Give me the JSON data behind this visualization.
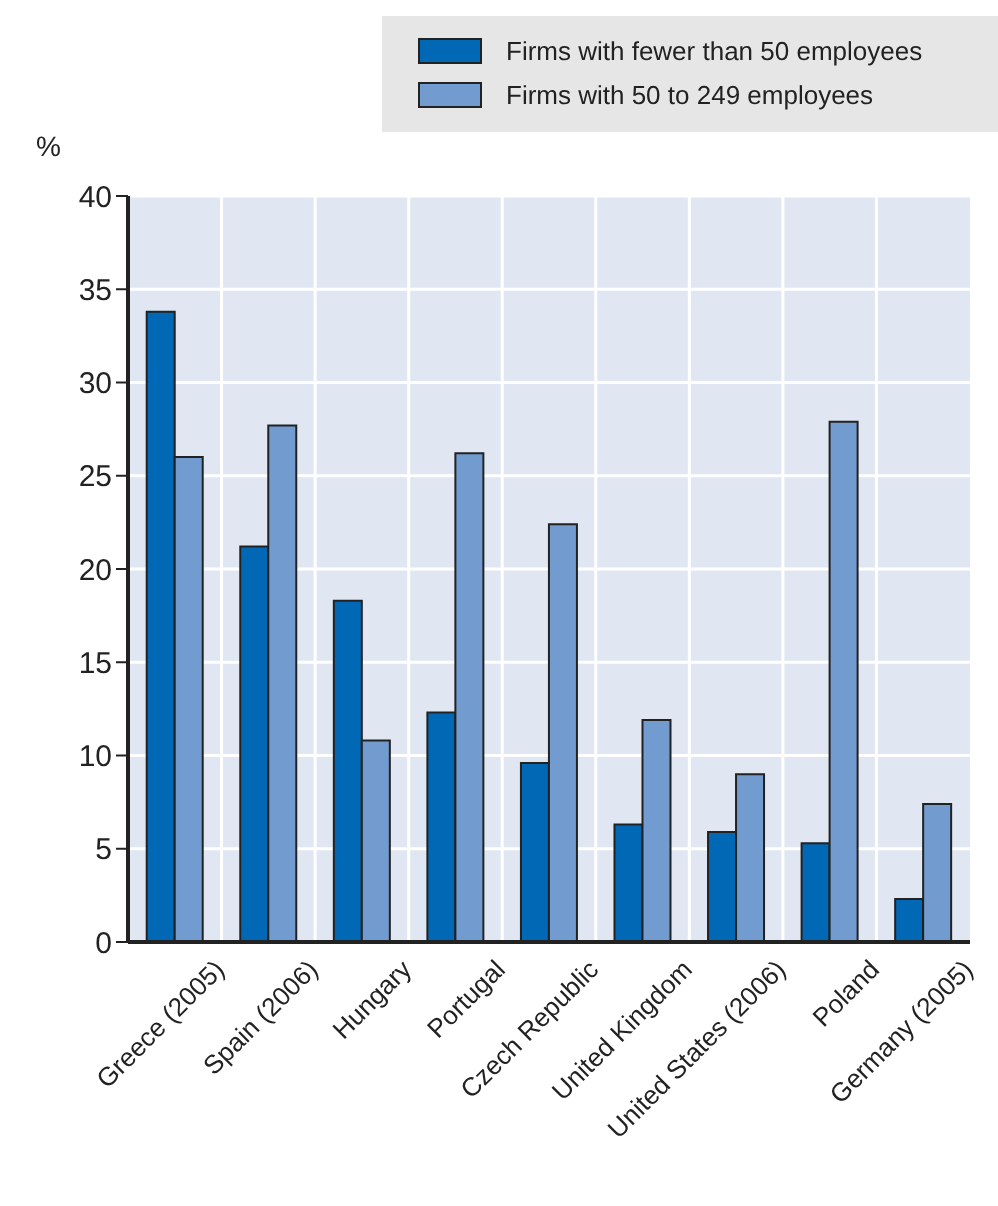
{
  "chart_data": {
    "type": "bar",
    "ylabel": "%",
    "categories": [
      "Greece (2005)",
      "Spain (2006)",
      "Hungary",
      "Portugal",
      "Czech Republic",
      "United Kingdom",
      "United States (2006)",
      "Poland",
      "Germany (2005)"
    ],
    "series": [
      {
        "name": "Firms with fewer than 50 employees",
        "color": "#0068b4",
        "values": [
          33.8,
          21.2,
          18.3,
          12.3,
          9.6,
          6.3,
          5.9,
          5.3,
          2.3
        ]
      },
      {
        "name": "Firms with 50 to 249 employees",
        "color": "#729bd0",
        "values": [
          26.0,
          27.7,
          10.8,
          26.2,
          22.4,
          11.9,
          9.0,
          27.9,
          7.4
        ]
      }
    ],
    "ylim": [
      0,
      40
    ],
    "yticks": [
      0,
      5,
      10,
      15,
      20,
      25,
      30,
      35,
      40
    ],
    "grid": true,
    "legend": "top right"
  }
}
